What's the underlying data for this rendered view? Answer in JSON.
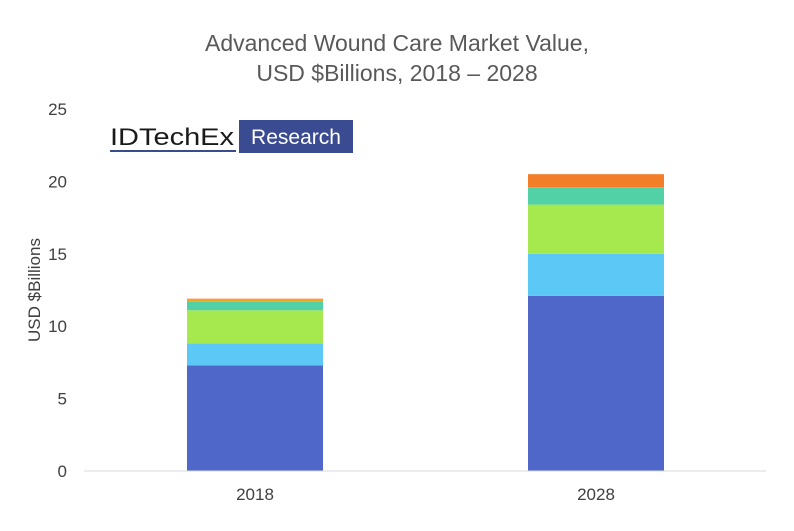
{
  "chart_data": {
    "type": "bar",
    "stacked": true,
    "title_lines": [
      "Advanced Wound Care Market Value,",
      "USD $Billions, 2018 – 2028"
    ],
    "xlabel": "",
    "ylabel": "USD $Billions",
    "categories": [
      "2018",
      "2028"
    ],
    "ylim": [
      0,
      25
    ],
    "yticks": [
      0,
      5,
      10,
      15,
      20,
      25
    ],
    "grid": false,
    "legend": "none",
    "series": [
      {
        "color": "#4f67c9",
        "values": [
          7.3,
          12.1
        ]
      },
      {
        "color": "#5bc8f5",
        "values": [
          1.5,
          2.9
        ]
      },
      {
        "color": "#a6e94f",
        "values": [
          2.3,
          3.4
        ]
      },
      {
        "color": "#53d1a6",
        "values": [
          0.6,
          1.2
        ]
      },
      {
        "color": "#f5a623",
        "values": [
          0.15,
          0.0
        ]
      },
      {
        "color": "#f37e2a",
        "values": [
          0.05,
          0.9
        ]
      }
    ]
  },
  "logo": {
    "word": "IDTechEx",
    "box_word": "Research",
    "box_color": "#3a4b91",
    "underline_color": "#3a4b91"
  }
}
